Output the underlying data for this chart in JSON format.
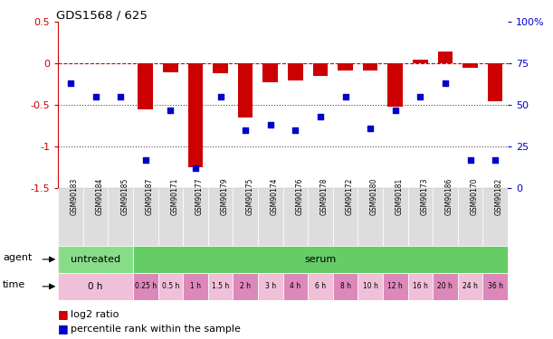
{
  "title": "GDS1568 / 625",
  "samples": [
    "GSM90183",
    "GSM90184",
    "GSM90185",
    "GSM90187",
    "GSM90171",
    "GSM90177",
    "GSM90179",
    "GSM90175",
    "GSM90174",
    "GSM90176",
    "GSM90178",
    "GSM90172",
    "GSM90180",
    "GSM90181",
    "GSM90173",
    "GSM90186",
    "GSM90170",
    "GSM90182"
  ],
  "log2_ratio": [
    0.0,
    0.0,
    0.0,
    -0.55,
    -0.1,
    -1.25,
    -0.12,
    -0.65,
    -0.22,
    -0.2,
    -0.15,
    -0.08,
    -0.08,
    -0.52,
    0.05,
    0.15,
    -0.05,
    -0.45
  ],
  "percentile_rank": [
    63,
    55,
    55,
    17,
    47,
    12,
    55,
    35,
    38,
    35,
    43,
    55,
    36,
    47,
    55,
    63,
    17,
    17
  ],
  "bar_color": "#CC0000",
  "dot_color": "#0000CC",
  "zero_line_color": "#CC0000",
  "dotted_line_color": "#444444",
  "ylim_left": [
    -1.5,
    0.5
  ],
  "ylim_right": [
    0,
    100
  ],
  "yticks_left": [
    -1.5,
    -1.0,
    -0.5,
    0.0,
    0.5
  ],
  "yticks_right": [
    0,
    25,
    50,
    75,
    100
  ],
  "ytick_labels_right": [
    "0",
    "25",
    "50",
    "75",
    "100%"
  ],
  "agent_untreated_color": "#88DD88",
  "agent_serum_color": "#66CC66",
  "time_light": "#F0C0D8",
  "time_dark": "#DD88BB",
  "time_labels": [
    "0 h",
    "0.25 h",
    "0.5 h",
    "1 h",
    "1.5 h",
    "2 h",
    "3 h",
    "4 h",
    "6 h",
    "8 h",
    "10 h",
    "12 h",
    "16 h",
    "20 h",
    "24 h",
    "36 h"
  ],
  "time_sample_start": [
    0,
    3,
    4,
    5,
    6,
    7,
    8,
    9,
    10,
    11,
    12,
    13,
    14,
    15,
    16,
    17
  ],
  "time_sample_end": [
    3,
    4,
    5,
    6,
    7,
    8,
    9,
    10,
    11,
    12,
    13,
    14,
    15,
    16,
    17,
    18
  ],
  "legend_red": "log2 ratio",
  "legend_blue": "percentile rank within the sample"
}
